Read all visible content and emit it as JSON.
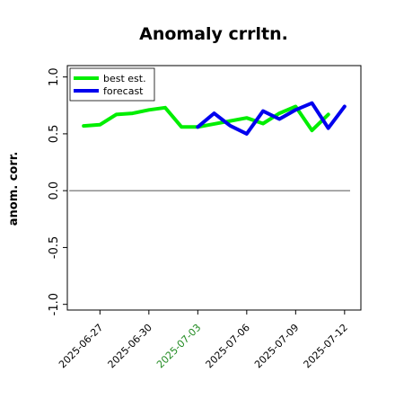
{
  "chart_data": {
    "type": "line",
    "title": "Anomaly crrltn.",
    "xlabel": "",
    "ylabel": "anom. corr.",
    "x": [
      "2025-06-26",
      "2025-06-27",
      "2025-06-28",
      "2025-06-29",
      "2025-06-30",
      "2025-07-01",
      "2025-07-02",
      "2025-07-03",
      "2025-07-04",
      "2025-07-05",
      "2025-07-06",
      "2025-07-07",
      "2025-07-08",
      "2025-07-09",
      "2025-07-10",
      "2025-07-11",
      "2025-07-12"
    ],
    "xticks": [
      "2025-06-27",
      "2025-06-30",
      "2025-07-03",
      "2025-07-06",
      "2025-07-09",
      "2025-07-12"
    ],
    "highlight_tick": "2025-07-03",
    "highlight_color": "#228b22",
    "ylim": [
      -1.05,
      1.1
    ],
    "xlim": [
      "2025-06-25",
      "2025-07-13"
    ],
    "yticks": [
      -1.0,
      -0.5,
      0.0,
      0.5,
      1.0
    ],
    "ytick_labels": [
      "-1.0",
      "-0.5",
      "0.0",
      "0.5",
      "1.0"
    ],
    "reference_line": 0.0,
    "legend_position": "upper-left",
    "grid": false,
    "series": [
      {
        "name": "best est.",
        "color": "#00ee00",
        "values": [
          0.57,
          0.58,
          0.67,
          0.68,
          0.71,
          0.73,
          0.56,
          0.56,
          null,
          null,
          0.64,
          0.59,
          0.68,
          0.74,
          0.53,
          0.67,
          null
        ]
      },
      {
        "name": "forecast",
        "color": "#0000ee",
        "values": [
          null,
          null,
          null,
          null,
          null,
          null,
          null,
          0.56,
          0.68,
          0.57,
          0.5,
          0.7,
          0.63,
          0.71,
          0.77,
          0.55,
          0.74
        ]
      }
    ]
  }
}
